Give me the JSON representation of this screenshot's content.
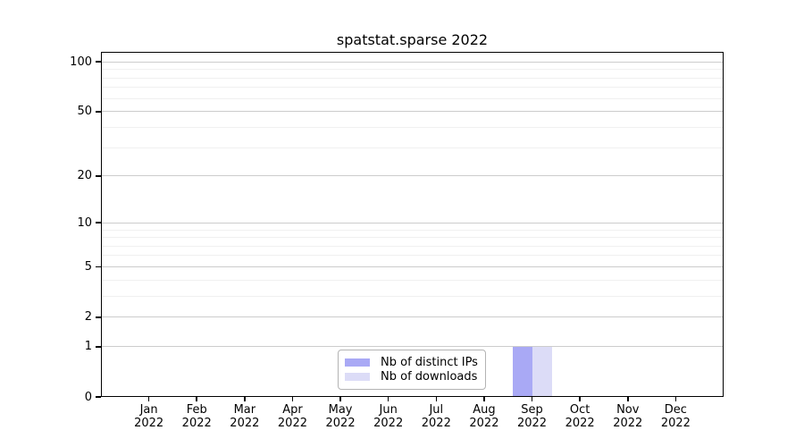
{
  "chart_data": {
    "type": "bar",
    "title": "spatstat.sparse 2022",
    "y_scale": "log1p",
    "ylim": [
      0,
      115
    ],
    "y_ticks": [
      0,
      1,
      2,
      5,
      10,
      20,
      50,
      100
    ],
    "y_minor_gridlines": [
      3,
      4,
      6,
      7,
      8,
      9,
      30,
      40,
      60,
      70,
      80,
      90
    ],
    "grid": "horizontal",
    "categories": [
      {
        "month": "Jan",
        "year": "2022"
      },
      {
        "month": "Feb",
        "year": "2022"
      },
      {
        "month": "Mar",
        "year": "2022"
      },
      {
        "month": "Apr",
        "year": "2022"
      },
      {
        "month": "May",
        "year": "2022"
      },
      {
        "month": "Jun",
        "year": "2022"
      },
      {
        "month": "Jul",
        "year": "2022"
      },
      {
        "month": "Aug",
        "year": "2022"
      },
      {
        "month": "Sep",
        "year": "2022"
      },
      {
        "month": "Oct",
        "year": "2022"
      },
      {
        "month": "Nov",
        "year": "2022"
      },
      {
        "month": "Dec",
        "year": "2022"
      }
    ],
    "series": [
      {
        "name": "Nb of distinct IPs",
        "color": "#a9a9f5",
        "values": [
          0,
          0,
          0,
          0,
          0,
          0,
          0,
          0,
          1,
          0,
          0,
          0
        ]
      },
      {
        "name": "Nb of downloads",
        "color": "#dcdcf7",
        "values": [
          0,
          0,
          0,
          0,
          0,
          0,
          0,
          0,
          1,
          0,
          0,
          0
        ]
      }
    ],
    "legend": {
      "position": "bottom-center",
      "entries": [
        "Nb of distinct IPs",
        "Nb of downloads"
      ]
    },
    "colors": {
      "background": "#ffffff",
      "axis": "#000000",
      "major_grid": "#cccccc",
      "minor_grid": "#f0f0f0",
      "legend_border": "#b3b3b3",
      "text": "#000000"
    }
  }
}
